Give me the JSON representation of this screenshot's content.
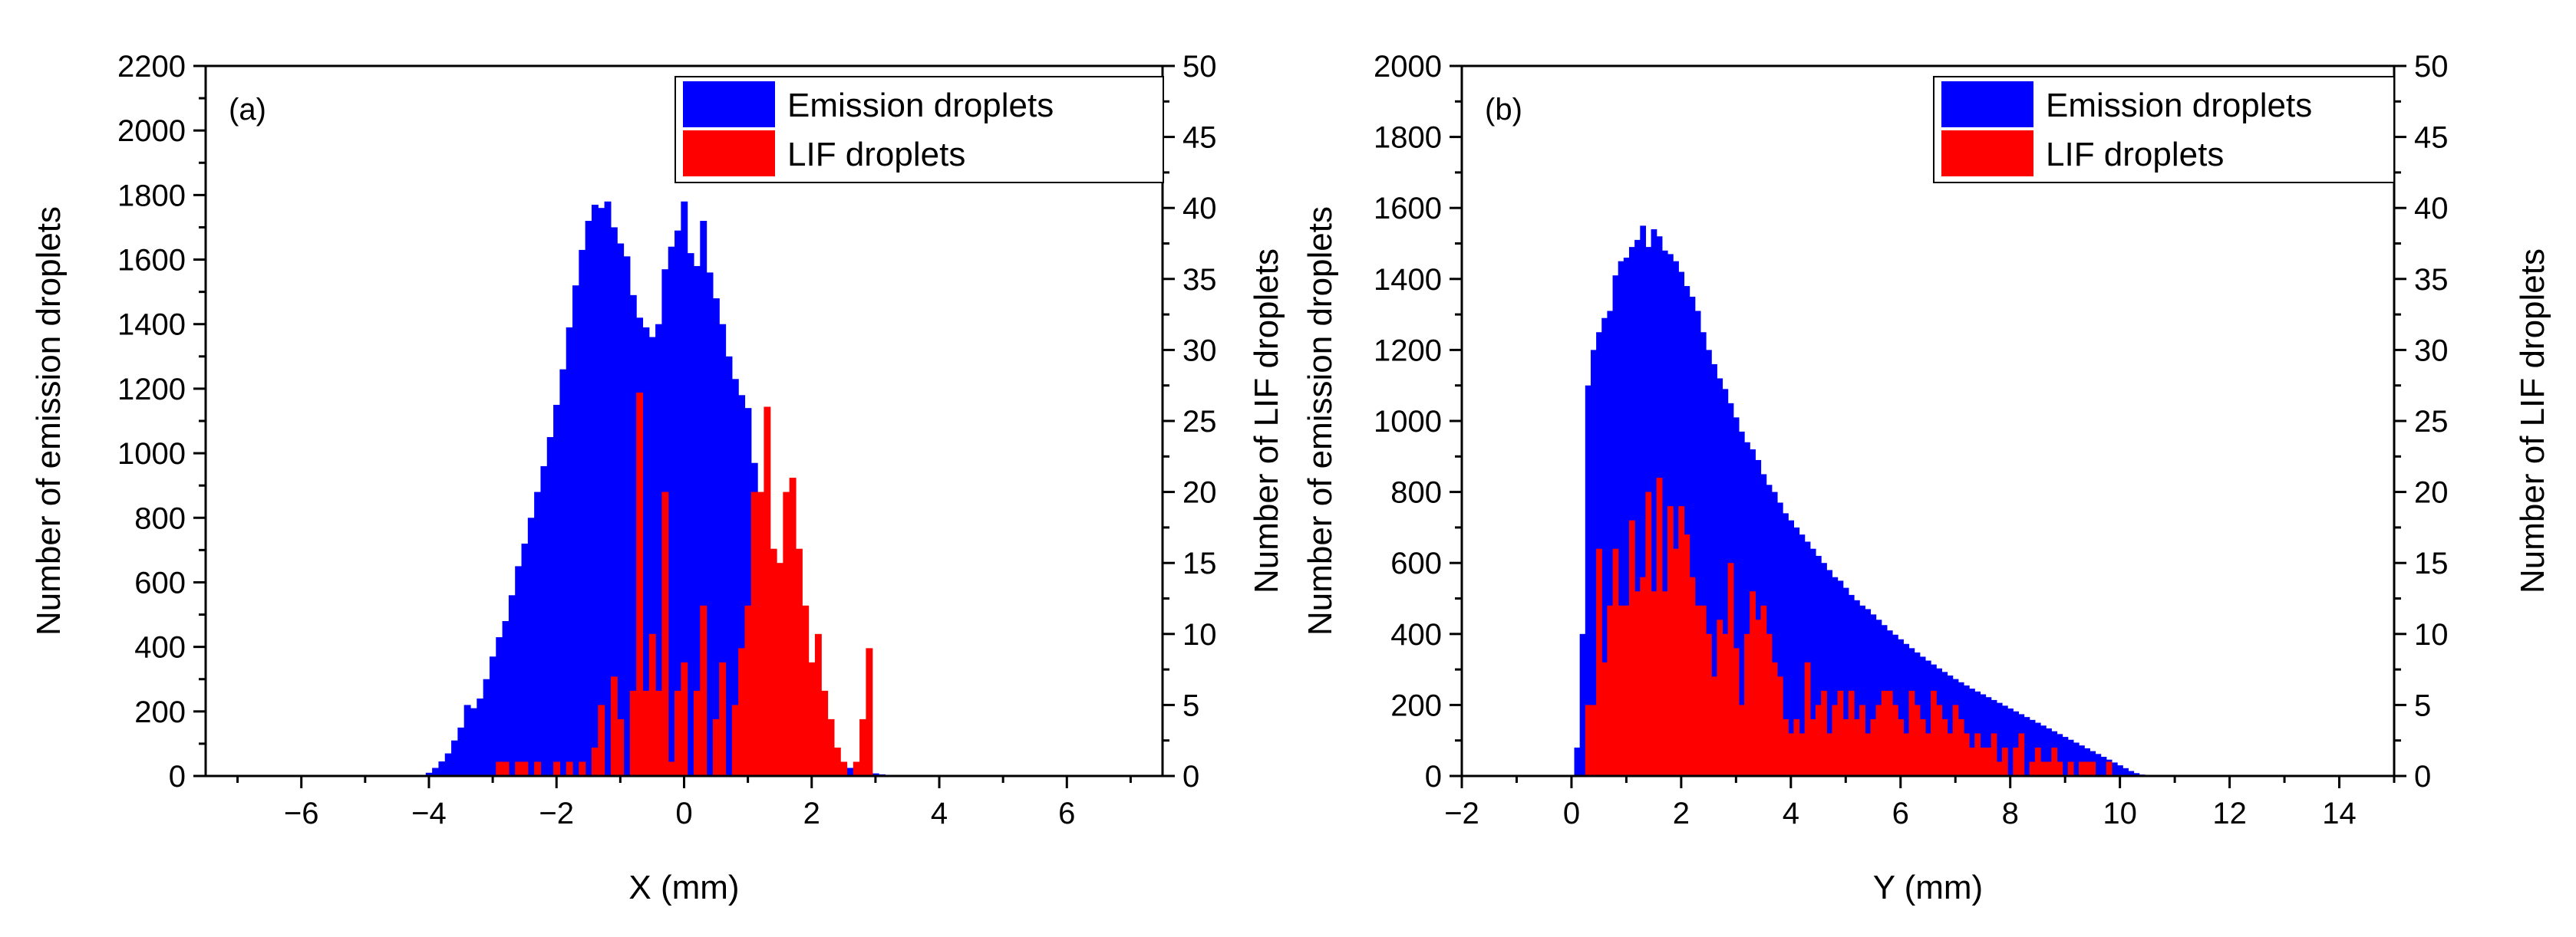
{
  "chart_data": [
    {
      "type": "bar",
      "panel_label": "(a)",
      "xlabel": "X (mm)",
      "ylabel": "Number of  emission droplets",
      "y2label": "Number of LIF droplets",
      "xlim": [
        -7.5,
        7.5
      ],
      "ylim": [
        0,
        2200
      ],
      "y2lim": [
        0,
        50
      ],
      "xticks": [
        -6,
        -4,
        -2,
        0,
        2,
        4,
        6
      ],
      "yticks": [
        0,
        200,
        400,
        600,
        800,
        1000,
        1200,
        1400,
        1600,
        1800,
        2000,
        2200
      ],
      "y2ticks": [
        0,
        5,
        10,
        15,
        20,
        25,
        30,
        35,
        40,
        45,
        50
      ],
      "legend_position": "top-right",
      "grid": false,
      "series": [
        {
          "name": "Emission droplets",
          "color": "#0000ff",
          "axis": "left",
          "x_start": -4.05,
          "bin_width": 0.1,
          "values": [
            10,
            25,
            45,
            70,
            110,
            150,
            220,
            210,
            240,
            300,
            370,
            430,
            480,
            560,
            650,
            720,
            800,
            880,
            960,
            1050,
            1150,
            1260,
            1390,
            1520,
            1630,
            1720,
            1770,
            1760,
            1780,
            1700,
            1650,
            1610,
            1490,
            1420,
            1390,
            1360,
            1400,
            1570,
            1640,
            1690,
            1780,
            1620,
            1580,
            1720,
            1560,
            1480,
            1400,
            1300,
            1230,
            1180,
            1140,
            970,
            800,
            650,
            560,
            410,
            320,
            270,
            200,
            160,
            120,
            90,
            70,
            55,
            45,
            35,
            25,
            20,
            15,
            10,
            8,
            5,
            3,
            2
          ]
        },
        {
          "name": "LIF droplets",
          "color": "#ff0000",
          "axis": "right",
          "x_start": -2.95,
          "bin_width": 0.1,
          "values": [
            1,
            1,
            0,
            1,
            1,
            0,
            1,
            0,
            0,
            1,
            0,
            1,
            0,
            1,
            0,
            2,
            5,
            0,
            7,
            4,
            0,
            6,
            27,
            6,
            10,
            6,
            20,
            1,
            6,
            8,
            0,
            6,
            12,
            0,
            4,
            8,
            0,
            5,
            9,
            12,
            20,
            20,
            26,
            16,
            15,
            20,
            21,
            16,
            12,
            8,
            10,
            6,
            4,
            2,
            1,
            0,
            1,
            4,
            9
          ]
        }
      ]
    },
    {
      "type": "bar",
      "panel_label": "(b)",
      "xlabel": "Y (mm)",
      "ylabel": "Number of emission droplets",
      "y2label": "Number of LIF droplets",
      "xlim": [
        -2,
        15
      ],
      "ylim": [
        0,
        2000
      ],
      "y2lim": [
        0,
        50
      ],
      "xticks": [
        -2,
        0,
        2,
        4,
        6,
        8,
        10,
        12,
        14
      ],
      "yticks": [
        0,
        200,
        400,
        600,
        800,
        1000,
        1200,
        1400,
        1600,
        1800,
        2000
      ],
      "y2ticks": [
        0,
        5,
        10,
        15,
        20,
        25,
        30,
        35,
        40,
        45,
        50
      ],
      "legend_position": "top-right",
      "grid": false,
      "series": [
        {
          "name": "Emission droplets",
          "color": "#0000ff",
          "axis": "left",
          "x_start": 0.05,
          "bin_width": 0.1,
          "values": [
            80,
            400,
            1100,
            1200,
            1250,
            1290,
            1310,
            1410,
            1450,
            1460,
            1490,
            1510,
            1550,
            1490,
            1540,
            1520,
            1480,
            1470,
            1450,
            1420,
            1380,
            1350,
            1310,
            1250,
            1200,
            1160,
            1120,
            1090,
            1050,
            1010,
            970,
            940,
            920,
            890,
            850,
            820,
            800,
            770,
            740,
            720,
            700,
            680,
            660,
            640,
            620,
            600,
            580,
            560,
            550,
            530,
            510,
            495,
            480,
            470,
            455,
            440,
            425,
            410,
            398,
            385,
            372,
            360,
            348,
            336,
            325,
            314,
            303,
            293,
            283,
            273,
            264,
            255,
            246,
            238,
            230,
            222,
            214,
            206,
            198,
            190,
            182,
            174,
            166,
            158,
            150,
            142,
            134,
            126,
            118,
            110,
            102,
            94,
            86,
            78,
            70,
            62,
            54,
            46,
            38,
            30,
            22,
            14,
            8,
            4,
            2
          ]
        },
        {
          "name": "LIF droplets",
          "color": "#ff0000",
          "axis": "right",
          "x_start": 0.25,
          "bin_width": 0.1,
          "values": [
            5,
            5,
            16,
            8,
            12,
            16,
            12,
            12,
            18,
            13,
            14,
            20,
            13,
            21,
            13,
            19,
            16,
            19,
            17,
            14,
            12,
            12,
            10,
            7,
            11,
            10,
            15,
            9,
            5,
            10,
            13,
            11,
            12,
            10,
            8,
            7,
            4,
            3,
            4,
            3,
            8,
            4,
            5,
            6,
            3,
            5,
            6,
            4,
            6,
            4,
            5,
            3,
            4,
            5,
            6,
            6,
            5,
            4,
            3,
            6,
            5,
            4,
            3,
            6,
            5,
            4,
            3,
            5,
            4,
            3,
            2,
            3,
            2,
            2,
            3,
            1,
            2,
            0,
            2,
            3,
            0,
            1,
            2,
            1,
            1,
            2,
            1,
            0,
            1,
            0,
            1,
            1,
            1,
            0,
            0,
            1
          ]
        }
      ]
    }
  ]
}
